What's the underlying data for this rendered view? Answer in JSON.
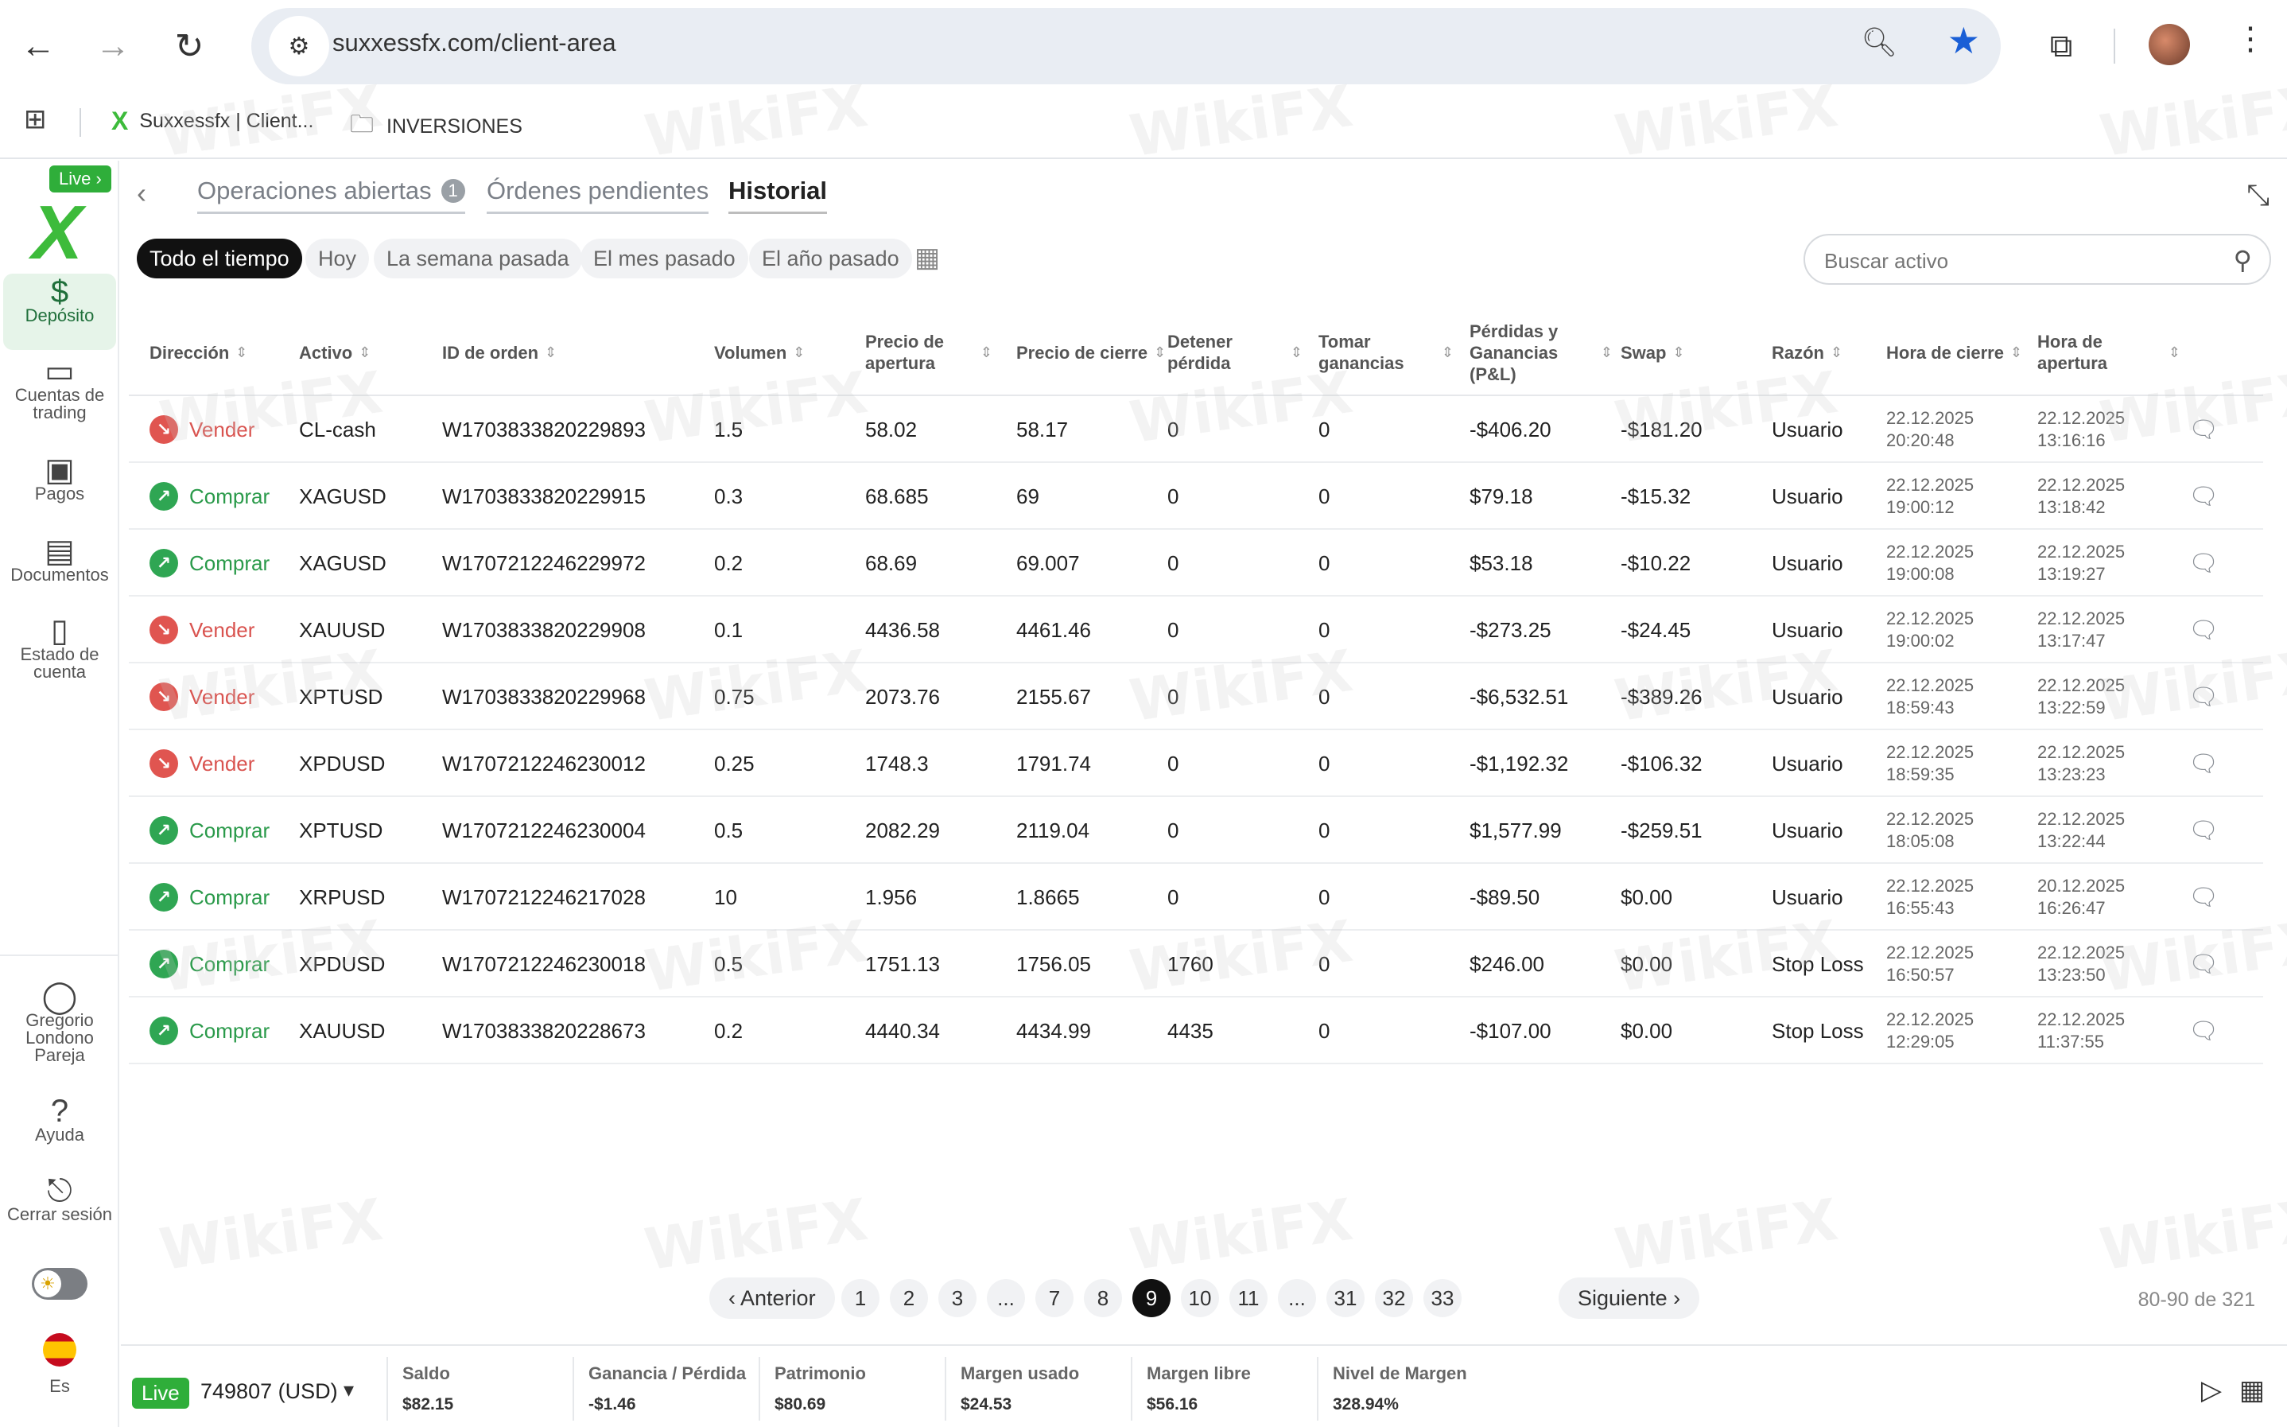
{
  "browser": {
    "url": "suxxessfx.com/client-area",
    "bookmarks": [
      {
        "label": "Suxxessfx | Client..."
      },
      {
        "label": "INVERSIONES"
      }
    ]
  },
  "sidebar": {
    "live_label": "Live ›",
    "items": [
      {
        "label": "Depósito",
        "icon": "dollar-icon"
      },
      {
        "label": "Cuentas de trading",
        "icon": "wallet-icon"
      },
      {
        "label": "Pagos",
        "icon": "payments-icon"
      },
      {
        "label": "Documentos",
        "icon": "id-card-icon"
      },
      {
        "label": "Estado de cuenta",
        "icon": "statement-icon"
      }
    ],
    "bottom_items": [
      {
        "label": "Gregorio Londono Pareja",
        "icon": "user-icon"
      },
      {
        "label": "Ayuda",
        "icon": "help-icon"
      },
      {
        "label": "Cerrar sesión",
        "icon": "logout-icon"
      }
    ],
    "language": "Es"
  },
  "tabs": {
    "open": "Operaciones abiertas",
    "open_count": "1",
    "pending": "Órdenes pendientes",
    "history": "Historial"
  },
  "filters": {
    "all": "Todo el tiempo",
    "today": "Hoy",
    "week": "La semana pasada",
    "month": "El mes pasado",
    "year": "El año pasado"
  },
  "search": {
    "placeholder": "Buscar activo"
  },
  "table": {
    "headers": {
      "direction": "Dirección",
      "asset": "Activo",
      "order_id": "ID de orden",
      "volume": "Volumen",
      "open_price": "Precio de apertura",
      "close_price": "Precio de cierre",
      "stop_loss": "Detener pérdida",
      "take_profit": "Tomar ganancias",
      "pnl": "Pérdidas y Ganancias (P&L)",
      "swap": "Swap",
      "reason": "Razón",
      "close_time": "Hora de cierre",
      "open_time": "Hora de apertura"
    },
    "rows": [
      {
        "dir": "Vender",
        "type": "sell",
        "asset": "CL-cash",
        "id": "W1703833820229893",
        "vol": "1.5",
        "open": "58.02",
        "close": "58.17",
        "sl": "0",
        "tp": "0",
        "pnl": "-$406.20",
        "swap": "-$181.20",
        "reason": "Usuario",
        "ctime_d": "22.12.2025",
        "ctime_t": "20:20:48",
        "otime_d": "22.12.2025",
        "otime_t": "13:16:16"
      },
      {
        "dir": "Comprar",
        "type": "buy",
        "asset": "XAGUSD",
        "id": "W1703833820229915",
        "vol": "0.3",
        "open": "68.685",
        "close": "69",
        "sl": "0",
        "tp": "0",
        "pnl": "$79.18",
        "swap": "-$15.32",
        "reason": "Usuario",
        "ctime_d": "22.12.2025",
        "ctime_t": "19:00:12",
        "otime_d": "22.12.2025",
        "otime_t": "13:18:42"
      },
      {
        "dir": "Comprar",
        "type": "buy",
        "asset": "XAGUSD",
        "id": "W1707212246229972",
        "vol": "0.2",
        "open": "68.69",
        "close": "69.007",
        "sl": "0",
        "tp": "0",
        "pnl": "$53.18",
        "swap": "-$10.22",
        "reason": "Usuario",
        "ctime_d": "22.12.2025",
        "ctime_t": "19:00:08",
        "otime_d": "22.12.2025",
        "otime_t": "13:19:27"
      },
      {
        "dir": "Vender",
        "type": "sell",
        "asset": "XAUUSD",
        "id": "W1703833820229908",
        "vol": "0.1",
        "open": "4436.58",
        "close": "4461.46",
        "sl": "0",
        "tp": "0",
        "pnl": "-$273.25",
        "swap": "-$24.45",
        "reason": "Usuario",
        "ctime_d": "22.12.2025",
        "ctime_t": "19:00:02",
        "otime_d": "22.12.2025",
        "otime_t": "13:17:47"
      },
      {
        "dir": "Vender",
        "type": "sell",
        "asset": "XPTUSD",
        "id": "W1703833820229968",
        "vol": "0.75",
        "open": "2073.76",
        "close": "2155.67",
        "sl": "0",
        "tp": "0",
        "pnl": "-$6,532.51",
        "swap": "-$389.26",
        "reason": "Usuario",
        "ctime_d": "22.12.2025",
        "ctime_t": "18:59:43",
        "otime_d": "22.12.2025",
        "otime_t": "13:22:59"
      },
      {
        "dir": "Vender",
        "type": "sell",
        "asset": "XPDUSD",
        "id": "W1707212246230012",
        "vol": "0.25",
        "open": "1748.3",
        "close": "1791.74",
        "sl": "0",
        "tp": "0",
        "pnl": "-$1,192.32",
        "swap": "-$106.32",
        "reason": "Usuario",
        "ctime_d": "22.12.2025",
        "ctime_t": "18:59:35",
        "otime_d": "22.12.2025",
        "otime_t": "13:23:23"
      },
      {
        "dir": "Comprar",
        "type": "buy",
        "asset": "XPTUSD",
        "id": "W1707212246230004",
        "vol": "0.5",
        "open": "2082.29",
        "close": "2119.04",
        "sl": "0",
        "tp": "0",
        "pnl": "$1,577.99",
        "swap": "-$259.51",
        "reason": "Usuario",
        "ctime_d": "22.12.2025",
        "ctime_t": "18:05:08",
        "otime_d": "22.12.2025",
        "otime_t": "13:22:44"
      },
      {
        "dir": "Comprar",
        "type": "buy",
        "asset": "XRPUSD",
        "id": "W1707212246217028",
        "vol": "10",
        "open": "1.956",
        "close": "1.8665",
        "sl": "0",
        "tp": "0",
        "pnl": "-$89.50",
        "swap": "$0.00",
        "reason": "Usuario",
        "ctime_d": "22.12.2025",
        "ctime_t": "16:55:43",
        "otime_d": "20.12.2025",
        "otime_t": "16:26:47"
      },
      {
        "dir": "Comprar",
        "type": "buy",
        "asset": "XPDUSD",
        "id": "W1707212246230018",
        "vol": "0.5",
        "open": "1751.13",
        "close": "1756.05",
        "sl": "1760",
        "tp": "0",
        "pnl": "$246.00",
        "swap": "$0.00",
        "reason": "Stop Loss",
        "ctime_d": "22.12.2025",
        "ctime_t": "16:50:57",
        "otime_d": "22.12.2025",
        "otime_t": "13:23:50"
      },
      {
        "dir": "Comprar",
        "type": "buy",
        "asset": "XAUUSD",
        "id": "W1703833820228673",
        "vol": "0.2",
        "open": "4440.34",
        "close": "4434.99",
        "sl": "4435",
        "tp": "0",
        "pnl": "-$107.00",
        "swap": "$0.00",
        "reason": "Stop Loss",
        "ctime_d": "22.12.2025",
        "ctime_t": "12:29:05",
        "otime_d": "22.12.2025",
        "otime_t": "11:37:55"
      }
    ]
  },
  "pagination": {
    "prev": "Anterior",
    "next": "Siguiente",
    "pages": [
      "1",
      "2",
      "3",
      "...",
      "7",
      "8",
      "9",
      "10",
      "11",
      "...",
      "31",
      "32",
      "33"
    ],
    "active": "9",
    "range": "80-90 de 321"
  },
  "footer": {
    "live": "Live",
    "account": "749807 (USD)",
    "stats": [
      {
        "label": "Saldo",
        "value": "$82.15"
      },
      {
        "label": "Ganancia / Pérdida",
        "value": "-$1.46"
      },
      {
        "label": "Patrimonio",
        "value": "$80.69"
      },
      {
        "label": "Margen usado",
        "value": "$24.53"
      },
      {
        "label": "Margen libre",
        "value": "$56.16"
      },
      {
        "label": "Nivel de Margen",
        "value": "328.94%"
      }
    ]
  },
  "watermark": "WikiFX",
  "colors": {
    "accent": "#3dbb3b",
    "sell": "#d9534f",
    "buy": "#2a9a4a"
  }
}
